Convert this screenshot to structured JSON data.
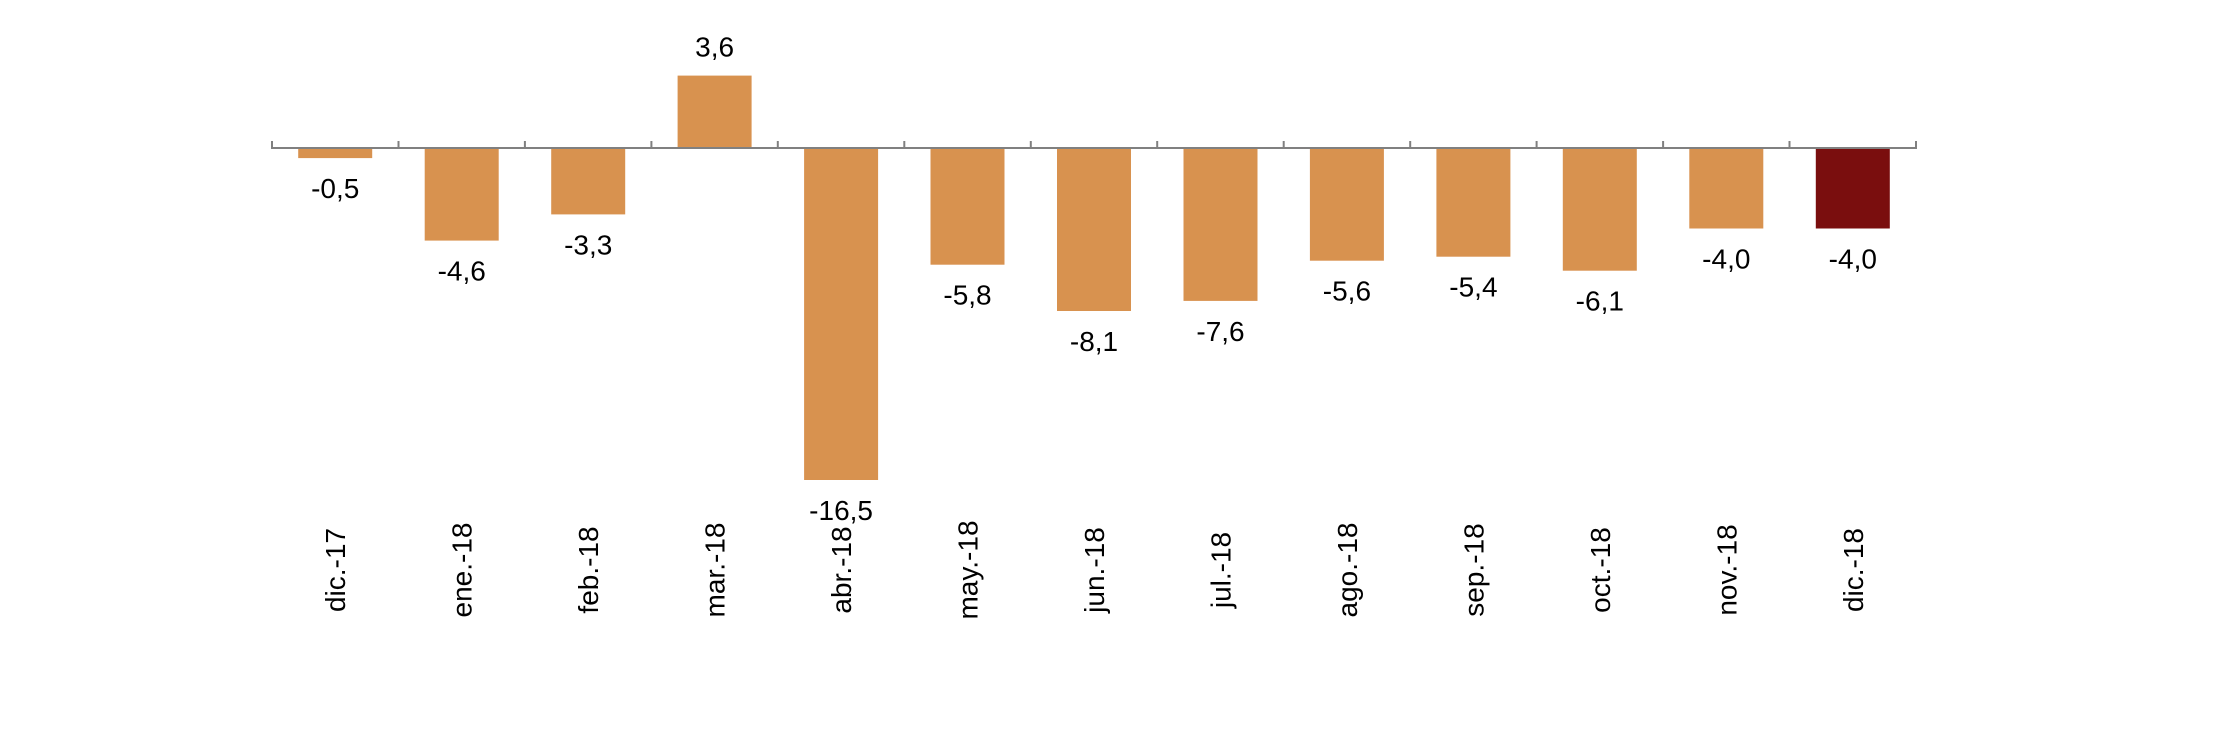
{
  "chart_data": {
    "type": "bar",
    "title": "",
    "xlabel": "",
    "ylabel": "",
    "ylim": [
      -16.5,
      3.6
    ],
    "grid": false,
    "legend": "none",
    "categories": [
      "dic.-17",
      "ene.-18",
      "feb.-18",
      "mar.-18",
      "abr.-18",
      "may.-18",
      "jun.-18",
      "jul.-18",
      "ago.-18",
      "sep.-18",
      "oct.-18",
      "nov.-18",
      "dic.-18"
    ],
    "values": [
      -0.5,
      -4.6,
      -3.3,
      3.6,
      -16.5,
      -5.8,
      -8.1,
      -7.6,
      -5.6,
      -5.4,
      -6.1,
      -4.0,
      -4.0
    ],
    "value_labels": [
      "-0,5",
      "-4,6",
      "-3,3",
      "3,6",
      "-16,5",
      "-5,8",
      "-8,1",
      "-7,6",
      "-5,6",
      "-5,4",
      "-6,1",
      "-4,0",
      "-4,0"
    ],
    "colors": {
      "bar": "#D8924F",
      "highlight": "#7A0E0E",
      "axis": "#808080"
    },
    "highlight_index": 12
  }
}
